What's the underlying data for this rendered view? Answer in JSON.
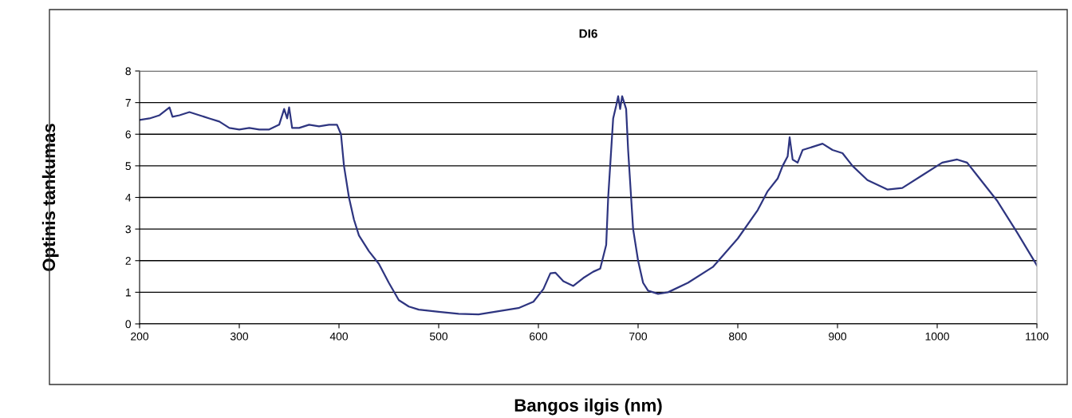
{
  "chart_data": {
    "type": "line",
    "title": "DI6",
    "xlabel": "Bangos ilgis (nm)",
    "ylabel": "Optinis tankumas",
    "xlim": [
      200,
      1100
    ],
    "xticks": [
      200,
      300,
      400,
      500,
      600,
      700,
      800,
      900,
      1000,
      1100
    ],
    "ylim": [
      0,
      8
    ],
    "yticks": [
      0,
      1,
      2,
      3,
      4,
      5,
      6,
      7,
      8
    ],
    "grid": "y",
    "marker": "none",
    "line_style": "solid",
    "series": [
      {
        "color": "#2e3580",
        "x": [
          200,
          210,
          220,
          230,
          233,
          240,
          250,
          260,
          270,
          280,
          290,
          300,
          310,
          320,
          330,
          340,
          345,
          348,
          350,
          353,
          360,
          370,
          380,
          390,
          398,
          402,
          405,
          410,
          415,
          420,
          430,
          440,
          450,
          460,
          470,
          480,
          500,
          520,
          540,
          560,
          580,
          595,
          605,
          612,
          617,
          625,
          635,
          645,
          655,
          662,
          668,
          670,
          672,
          675,
          678,
          680,
          682,
          684,
          688,
          690,
          693,
          695,
          700,
          705,
          710,
          720,
          730,
          750,
          775,
          800,
          820,
          830,
          840,
          845,
          850,
          852,
          855,
          860,
          865,
          875,
          885,
          895,
          905,
          915,
          930,
          950,
          965,
          985,
          1005,
          1020,
          1030,
          1040,
          1060,
          1080,
          1100
        ],
        "values": [
          6.45,
          6.5,
          6.6,
          6.85,
          6.55,
          6.6,
          6.7,
          6.6,
          6.5,
          6.4,
          6.2,
          6.15,
          6.2,
          6.15,
          6.15,
          6.3,
          6.8,
          6.5,
          6.85,
          6.2,
          6.2,
          6.3,
          6.25,
          6.3,
          6.3,
          6.0,
          5.0,
          4.0,
          3.3,
          2.8,
          2.3,
          1.9,
          1.3,
          0.75,
          0.55,
          0.45,
          0.38,
          0.32,
          0.3,
          0.4,
          0.5,
          0.7,
          1.1,
          1.6,
          1.62,
          1.35,
          1.2,
          1.45,
          1.65,
          1.75,
          2.5,
          4.0,
          5.0,
          6.5,
          6.9,
          7.2,
          6.8,
          7.2,
          6.8,
          5.5,
          4.0,
          3.0,
          2.0,
          1.3,
          1.05,
          0.95,
          1.0,
          1.3,
          1.8,
          2.7,
          3.6,
          4.2,
          4.6,
          5.0,
          5.3,
          5.9,
          5.2,
          5.1,
          5.5,
          5.6,
          5.7,
          5.5,
          5.4,
          5.0,
          4.55,
          4.25,
          4.3,
          4.7,
          5.1,
          5.2,
          5.1,
          4.7,
          3.9,
          2.9,
          1.85
        ]
      }
    ]
  }
}
